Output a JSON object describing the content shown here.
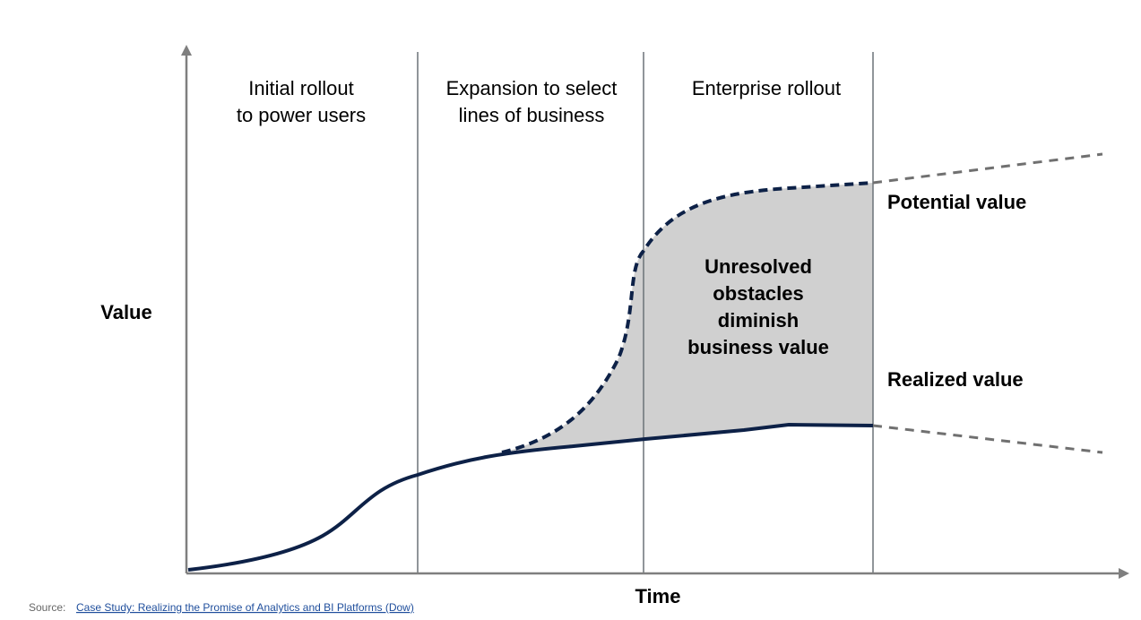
{
  "axes": {
    "y_label": "Value",
    "x_label": "Time"
  },
  "phases": [
    {
      "label_lines": [
        "Initial rollout",
        "to power users"
      ]
    },
    {
      "label_lines": [
        "Expansion to select",
        "lines of business"
      ]
    },
    {
      "label_lines": [
        "Enterprise rollout"
      ]
    }
  ],
  "curves": {
    "potential": "Potential value",
    "realized": "Realized value"
  },
  "annotation": {
    "lines": [
      "Unresolved",
      "obstacles",
      "diminish",
      "business value"
    ]
  },
  "source": {
    "prefix": "Source:",
    "link": "Case Study: Realizing the Promise of Analytics and BI Platforms (Dow)"
  }
}
